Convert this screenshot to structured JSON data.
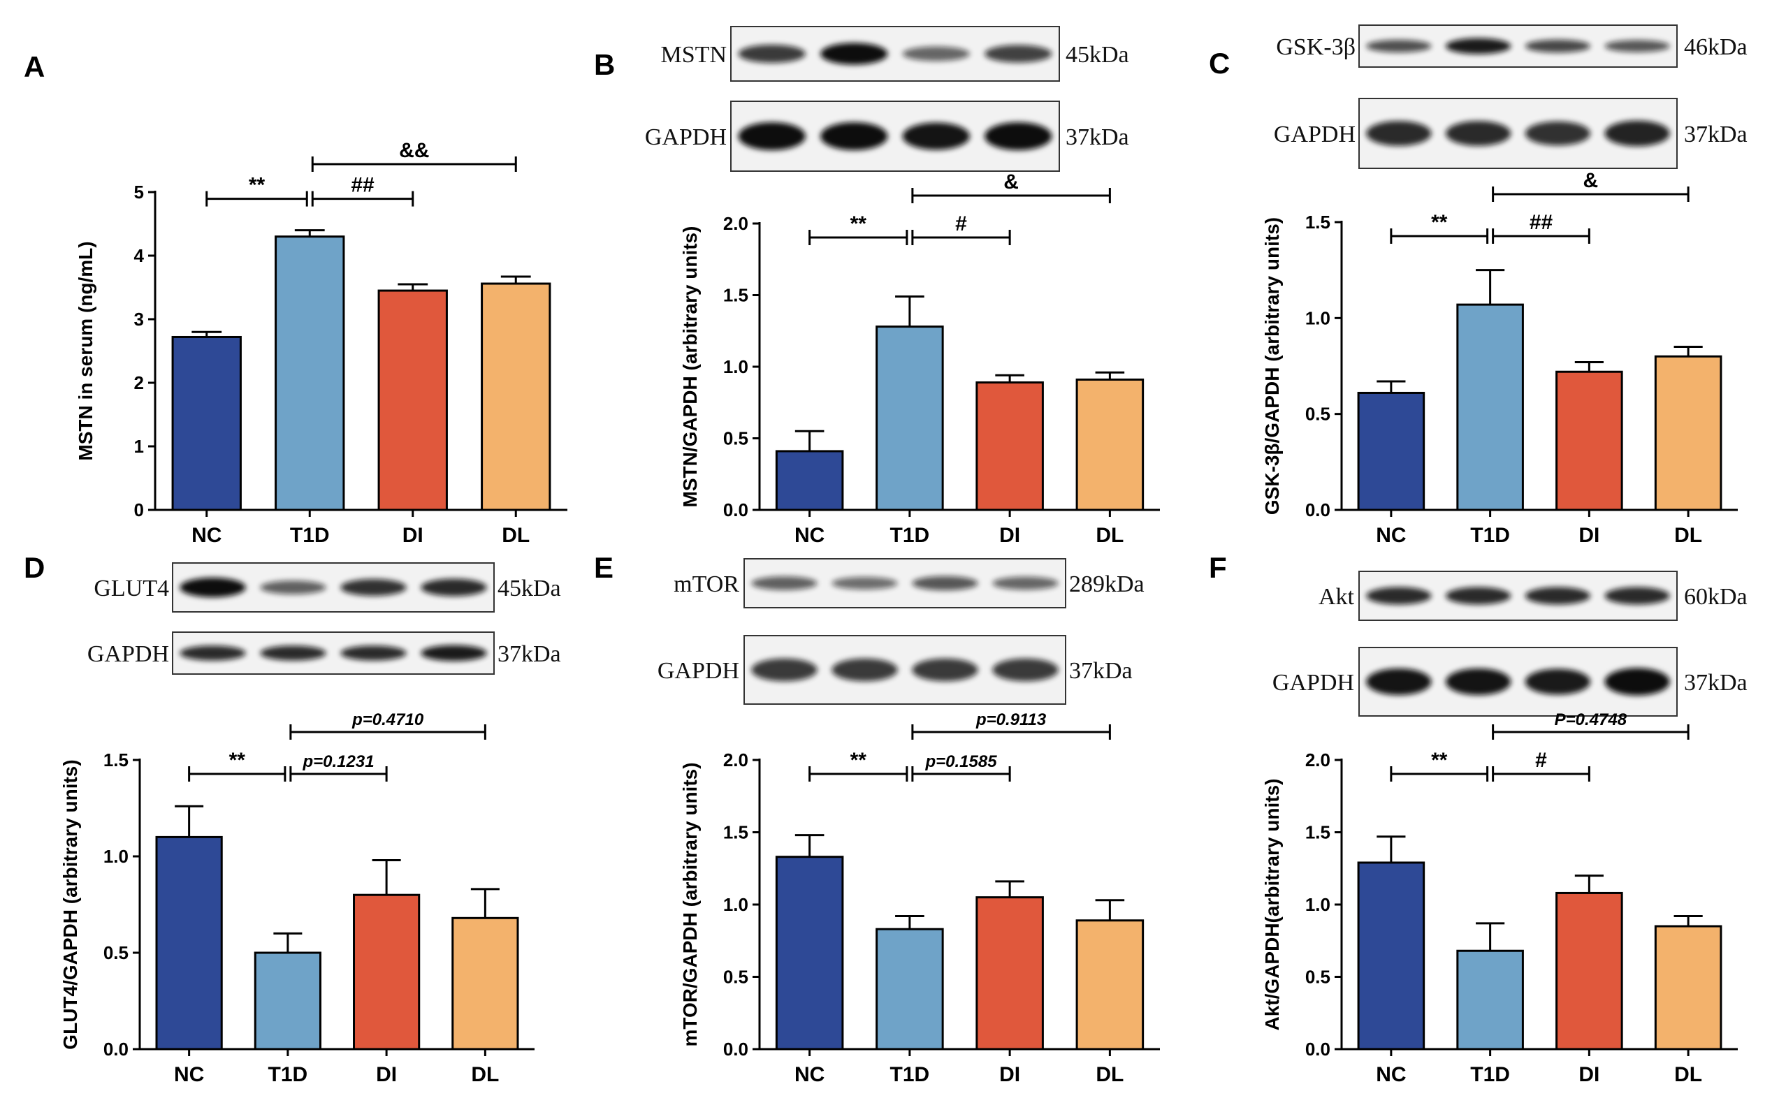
{
  "group_colors": {
    "NC": "#2e4996",
    "T1D": "#6fa3c8",
    "DI": "#e0583c",
    "DL": "#f3b26c"
  },
  "chart_data": [
    {
      "panel": "A",
      "type": "bar",
      "categories": [
        "NC",
        "T1D",
        "DI",
        "DL"
      ],
      "values": [
        2.72,
        4.3,
        3.45,
        3.56
      ],
      "errors": [
        0.08,
        0.1,
        0.1,
        0.11
      ],
      "ylabel": "MSTN in serum (ng/mL)",
      "ylim": [
        0,
        5
      ],
      "yticks": [
        "0",
        "1",
        "2",
        "3",
        "4",
        "5"
      ],
      "annotations": [
        {
          "from": 0,
          "to": 1,
          "label": "**",
          "level": 0.28,
          "italic": false
        },
        {
          "from": 1,
          "to": 2,
          "label": "##",
          "level": 0.28,
          "italic": false
        },
        {
          "from": 1,
          "to": 3,
          "label": "&&",
          "level": 1.0,
          "italic": false
        }
      ]
    },
    {
      "panel": "B",
      "type": "bar",
      "categories": [
        "NC",
        "T1D",
        "DI",
        "DL"
      ],
      "values": [
        0.41,
        1.28,
        0.89,
        0.91
      ],
      "errors": [
        0.14,
        0.21,
        0.05,
        0.05
      ],
      "ylabel": "MSTN/GAPDH (arbitrary units)",
      "ylim": [
        0,
        2.0
      ],
      "yticks": [
        "0.0",
        "0.5",
        "1.0",
        "1.5",
        "2.0"
      ],
      "annotations": [
        {
          "from": 0,
          "to": 1,
          "label": "**",
          "level": 0.35,
          "italic": false
        },
        {
          "from": 1,
          "to": 2,
          "label": "#",
          "level": 0.35,
          "italic": false
        },
        {
          "from": 1,
          "to": 3,
          "label": "&",
          "level": 1.0,
          "italic": false
        }
      ],
      "blots": [
        {
          "label": "MSTN",
          "kda": "45kDa",
          "intensity": [
            0.7,
            1.0,
            0.4,
            0.65
          ]
        },
        {
          "label": "GAPDH",
          "kda": "37kDa",
          "intensity": [
            1.0,
            1.0,
            0.95,
            1.0
          ]
        }
      ]
    },
    {
      "panel": "C",
      "type": "bar",
      "categories": [
        "NC",
        "T1D",
        "DI",
        "DL"
      ],
      "values": [
        0.61,
        1.07,
        0.72,
        0.8
      ],
      "errors": [
        0.06,
        0.18,
        0.05,
        0.05
      ],
      "ylabel": "GSK-3β/GAPDH (arbitrary units)",
      "ylim": [
        0,
        1.5
      ],
      "yticks": [
        "0.0",
        "0.5",
        "1.0",
        "1.5"
      ],
      "annotations": [
        {
          "from": 0,
          "to": 1,
          "label": "**",
          "level": 0.35,
          "italic": false
        },
        {
          "from": 1,
          "to": 2,
          "label": "##",
          "level": 0.35,
          "italic": false
        },
        {
          "from": 1,
          "to": 3,
          "label": "&",
          "level": 1.0,
          "italic": false
        }
      ],
      "blots": [
        {
          "label": "GSK-3β",
          "kda": "46kDa",
          "intensity": [
            0.55,
            0.9,
            0.6,
            0.5
          ]
        },
        {
          "label": "GAPDH",
          "kda": "37kDa",
          "intensity": [
            0.8,
            0.8,
            0.75,
            0.85
          ]
        }
      ]
    },
    {
      "panel": "D",
      "type": "bar",
      "categories": [
        "NC",
        "T1D",
        "DI",
        "DL"
      ],
      "values": [
        1.1,
        0.5,
        0.8,
        0.68
      ],
      "errors": [
        0.16,
        0.1,
        0.18,
        0.15
      ],
      "ylabel": "GLUT4/GAPDH (arbitrary units)",
      "ylim": [
        0,
        1.5
      ],
      "yticks": [
        "0.0",
        "0.5",
        "1.0",
        "1.5"
      ],
      "annotations": [
        {
          "from": 0,
          "to": 1,
          "label": "**",
          "level": 0.35,
          "italic": false
        },
        {
          "from": 1,
          "to": 2,
          "label": "p=0.1231",
          "level": 0.35,
          "italic": true
        },
        {
          "from": 1,
          "to": 3,
          "label": "p=0.4710",
          "level": 1.0,
          "italic": true
        }
      ],
      "blots": [
        {
          "label": "GLUT4",
          "kda": "45kDa",
          "intensity": [
            1.0,
            0.45,
            0.75,
            0.8
          ]
        },
        {
          "label": "GAPDH",
          "kda": "37kDa",
          "intensity": [
            0.8,
            0.8,
            0.8,
            0.9
          ]
        }
      ]
    },
    {
      "panel": "E",
      "type": "bar",
      "categories": [
        "NC",
        "T1D",
        "DI",
        "DL"
      ],
      "values": [
        1.33,
        0.83,
        1.05,
        0.89
      ],
      "errors": [
        0.15,
        0.09,
        0.11,
        0.14
      ],
      "ylabel": "mTOR/GAPDH (arbitrary units)",
      "ylim": [
        0,
        2.0
      ],
      "yticks": [
        "0.0",
        "0.5",
        "1.0",
        "1.5",
        "2.0"
      ],
      "annotations": [
        {
          "from": 0,
          "to": 1,
          "label": "**",
          "level": 0.35,
          "italic": false
        },
        {
          "from": 1,
          "to": 2,
          "label": "p=0.1585",
          "level": 0.35,
          "italic": true
        },
        {
          "from": 1,
          "to": 3,
          "label": "p=0.9113",
          "level": 1.0,
          "italic": true
        }
      ],
      "blots": [
        {
          "label": "mTOR",
          "kda": "289kDa",
          "intensity": [
            0.45,
            0.35,
            0.5,
            0.4
          ]
        },
        {
          "label": "GAPDH",
          "kda": "37kDa",
          "intensity": [
            0.7,
            0.7,
            0.7,
            0.7
          ]
        }
      ]
    },
    {
      "panel": "F",
      "type": "bar",
      "categories": [
        "NC",
        "T1D",
        "DI",
        "DL"
      ],
      "values": [
        1.29,
        0.68,
        1.08,
        0.85
      ],
      "errors": [
        0.18,
        0.19,
        0.12,
        0.07
      ],
      "ylabel": "Akt/GAPDH(arbitrary units)",
      "ylim": [
        0,
        2.0
      ],
      "yticks": [
        "0.0",
        "0.5",
        "1.0",
        "1.5",
        "2.0"
      ],
      "annotations": [
        {
          "from": 0,
          "to": 1,
          "label": "**",
          "level": 0.35,
          "italic": false
        },
        {
          "from": 1,
          "to": 2,
          "label": "#",
          "level": 0.35,
          "italic": false
        },
        {
          "from": 1,
          "to": 3,
          "label": "P=0.4748",
          "level": 1.0,
          "italic": true
        }
      ],
      "blots": [
        {
          "label": "Akt",
          "kda": "60kDa",
          "intensity": [
            0.8,
            0.8,
            0.8,
            0.8
          ]
        },
        {
          "label": "GAPDH",
          "kda": "37kDa",
          "intensity": [
            0.95,
            0.95,
            0.9,
            1.0
          ]
        }
      ]
    }
  ]
}
